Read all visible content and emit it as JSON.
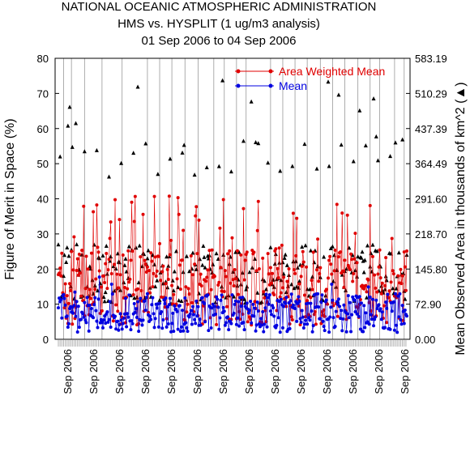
{
  "chart_data": {
    "type": "line",
    "title": [
      "NATIONAL OCEANIC ATMOSPHERIC ADMINISTRATION",
      "HMS vs. HYSPLIT (1 ug/m3 analysis)",
      "01 Sep 2006 to 04 Sep 2006"
    ],
    "ylabel_left": "Figure of Merit in Space (%)",
    "ylabel_right": "Mean Observed Area in thousands of km^2 (▲)",
    "ylim_left": [
      0,
      80
    ],
    "yticks_left": [
      "0",
      "10",
      "20",
      "30",
      "40",
      "50",
      "60",
      "70",
      "80"
    ],
    "ylim_right": [
      0,
      583.19
    ],
    "yticks_right": [
      "0.00",
      "72.90",
      "145.80",
      "218.70",
      "291.60",
      "364.49",
      "437.39",
      "510.29",
      "583.19"
    ],
    "xtick_labels": [
      "Sep 2006",
      "Sep 2006",
      "Sep 2006",
      "Sep 2006",
      "Sep 2006",
      "Sep 2006",
      "Sep 2006",
      "Sep 2006",
      "Sep 2006",
      "Sep 2006",
      "Sep 2006",
      "Sep 2006",
      "Sep 2006",
      "Sep 2006"
    ],
    "legend": [
      "Area Weighted Mean",
      "Mean"
    ],
    "legend_position": "top-right",
    "colors": {
      "area_weighted": "#e00000",
      "mean": "#0000e0",
      "area": "#000000",
      "grid": "#999999"
    },
    "num_points": 400,
    "vertical_lines": [
      6,
      15,
      30,
      50,
      73,
      102,
      116,
      130,
      145,
      160,
      178,
      190,
      204,
      215,
      243,
      257,
      271,
      285,
      300,
      314,
      328,
      343,
      357,
      368,
      385,
      396
    ]
  }
}
